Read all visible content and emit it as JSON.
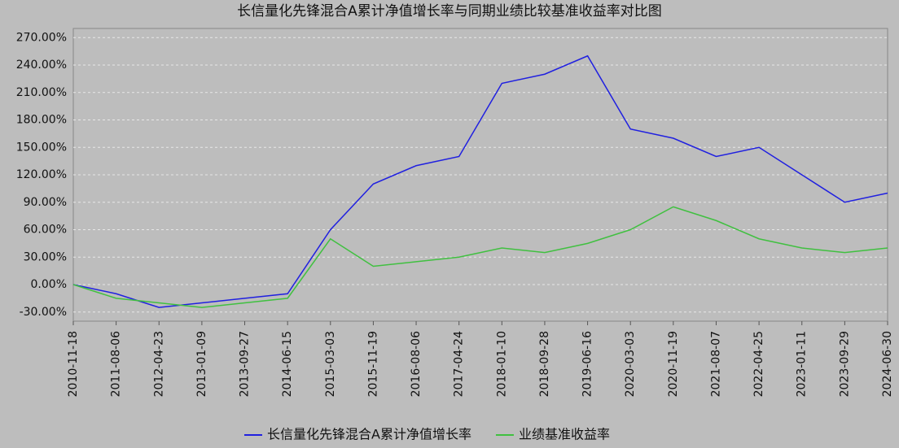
{
  "chart_data": {
    "type": "line",
    "title": "长信量化先锋混合A累计净值增长率与同期业绩比较基准收益率对比图",
    "categories": [
      "2010-11-18",
      "2011-08-06",
      "2012-04-23",
      "2013-01-09",
      "2013-09-27",
      "2014-06-15",
      "2015-03-03",
      "2015-11-19",
      "2016-08-06",
      "2017-04-24",
      "2018-01-10",
      "2018-09-28",
      "2019-06-16",
      "2020-03-03",
      "2020-11-19",
      "2021-08-07",
      "2022-04-25",
      "2023-01-11",
      "2023-09-29",
      "2024-06-30"
    ],
    "series": [
      {
        "name": "长信量化先锋混合A累计净值增长率",
        "color": "#2020e0",
        "values": [
          0,
          -10,
          -25,
          -20,
          -15,
          -10,
          60,
          110,
          130,
          140,
          220,
          230,
          250,
          170,
          160,
          140,
          150,
          120,
          90,
          100
        ]
      },
      {
        "name": "业绩基准收益率",
        "color": "#40c040",
        "values": [
          0,
          -15,
          -20,
          -25,
          -20,
          -15,
          50,
          20,
          25,
          30,
          40,
          35,
          45,
          60,
          85,
          70,
          50,
          40,
          35,
          40
        ]
      }
    ],
    "ylim": [
      -40,
      280
    ],
    "yticks": [
      {
        "value": -30,
        "label": "-30.00%"
      },
      {
        "value": 0,
        "label": "0.00%"
      },
      {
        "value": 30,
        "label": "30.00%"
      },
      {
        "value": 60,
        "label": "60.00%"
      },
      {
        "value": 90,
        "label": "90.00%"
      },
      {
        "value": 120,
        "label": "120.00%"
      },
      {
        "value": 150,
        "label": "150.00%"
      },
      {
        "value": 180,
        "label": "180.00%"
      },
      {
        "value": 210,
        "label": "210.00%"
      },
      {
        "value": 240,
        "label": "240.00%"
      },
      {
        "value": 270,
        "label": "270.00%"
      }
    ],
    "grid": true
  }
}
